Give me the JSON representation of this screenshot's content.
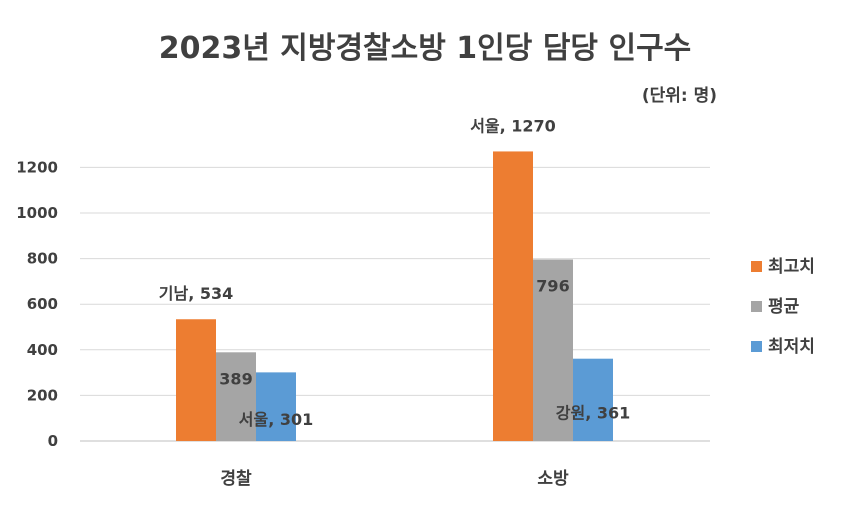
{
  "chart_data": {
    "type": "bar",
    "title": "2023년 지방경찰소방 1인당 담당 인구수",
    "unit_label": "(단위: 명)",
    "categories": [
      "경찰",
      "소방"
    ],
    "ylim": [
      0,
      1270
    ],
    "yticks": [
      0,
      200,
      400,
      600,
      800,
      1000,
      1200
    ],
    "grid": true,
    "legend_position": "right",
    "series": [
      {
        "name": "최고치",
        "color": "#ED7D31",
        "values": [
          534,
          1270
        ],
        "labels": [
          "기남, 534",
          "서울, 1270"
        ]
      },
      {
        "name": "평균",
        "color": "#A5A5A5",
        "values": [
          389,
          796
        ],
        "labels": [
          "389",
          "796"
        ]
      },
      {
        "name": "최저치",
        "color": "#5B9BD5",
        "values": [
          301,
          361
        ],
        "labels": [
          "서울, 301",
          "강원, 361"
        ]
      }
    ]
  }
}
